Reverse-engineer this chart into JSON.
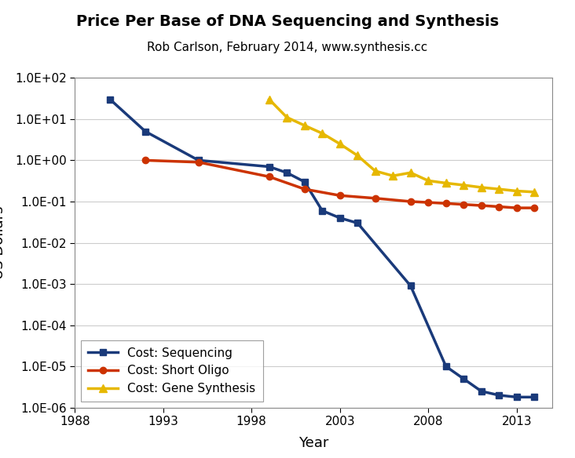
{
  "title": "Price Per Base of DNA Sequencing and Synthesis",
  "subtitle": "Rob Carlson, February 2014, www.synthesis.cc",
  "xlabel": "Year",
  "xlim": [
    1988,
    2015
  ],
  "ylim_log": [
    -6,
    2
  ],
  "sequencing": {
    "x": [
      1990,
      1992,
      1995,
      1999,
      2000,
      2001,
      2002,
      2003,
      2004,
      2007,
      2009,
      2010,
      2011,
      2012,
      2013,
      2014
    ],
    "y": [
      30,
      5.0,
      1.0,
      0.7,
      0.5,
      0.3,
      0.06,
      0.04,
      0.03,
      0.0009,
      1e-05,
      5e-06,
      2.5e-06,
      2e-06,
      1.8e-06,
      1.8e-06
    ],
    "color": "#1a3a7a",
    "marker": "s",
    "markersize": 6,
    "linewidth": 2.5,
    "label": "Cost: Sequencing"
  },
  "short_oligo": {
    "x": [
      1992,
      1995,
      1999,
      2001,
      2003,
      2005,
      2007,
      2008,
      2009,
      2010,
      2011,
      2012,
      2013,
      2014
    ],
    "y": [
      1.0,
      0.9,
      0.4,
      0.2,
      0.14,
      0.12,
      0.1,
      0.095,
      0.09,
      0.085,
      0.08,
      0.075,
      0.07,
      0.07
    ],
    "color": "#cc3300",
    "marker": "o",
    "markersize": 6,
    "linewidth": 2.5,
    "label": "Cost: Short Oligo"
  },
  "gene_synthesis": {
    "x": [
      1999,
      2000,
      2001,
      2002,
      2003,
      2004,
      2005,
      2006,
      2007,
      2008,
      2009,
      2010,
      2011,
      2012,
      2013,
      2014
    ],
    "y": [
      30,
      11,
      7,
      4.5,
      2.5,
      1.3,
      0.55,
      0.42,
      0.5,
      0.32,
      0.28,
      0.25,
      0.22,
      0.2,
      0.18,
      0.17
    ],
    "color": "#e6b800",
    "marker": "^",
    "markersize": 7,
    "linewidth": 2.5,
    "label": "Cost: Gene Synthesis"
  },
  "xticks": [
    1988,
    1993,
    1998,
    2003,
    2008,
    2013
  ],
  "xtick_labels": [
    "1988",
    "1993",
    "1998",
    "2003",
    "2008",
    "2013"
  ],
  "title_fontsize": 14,
  "subtitle_fontsize": 11,
  "axis_label_fontsize": 13,
  "tick_fontsize": 11,
  "legend_fontsize": 11,
  "background_color": "#ffffff",
  "grid_color": "#cccccc",
  "spine_color": "#888888"
}
